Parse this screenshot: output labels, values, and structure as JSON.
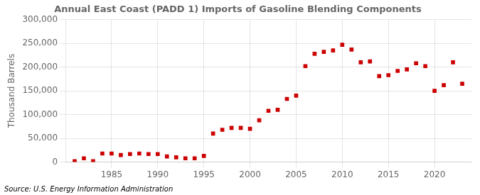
{
  "chart_data": {
    "type": "scatter",
    "title": "Annual East Coast (PADD 1) Imports of Gasoline Blending Components",
    "ylabel": "Thousand Barrels",
    "annotations": [
      "Source: U.S. Energy Information Administration"
    ],
    "x": [
      1981,
      1982,
      1983,
      1984,
      1985,
      1986,
      1987,
      1988,
      1989,
      1990,
      1991,
      1992,
      1993,
      1994,
      1995,
      1996,
      1997,
      1998,
      1999,
      2000,
      2001,
      2002,
      2003,
      2004,
      2005,
      2006,
      2007,
      2008,
      2009,
      2010,
      2011,
      2012,
      2013,
      2014,
      2015,
      2016,
      2017,
      2018,
      2019,
      2020,
      2021,
      2022,
      2023
    ],
    "values": [
      2000,
      8000,
      2000,
      18000,
      18000,
      15000,
      17000,
      18000,
      17000,
      17000,
      12000,
      10000,
      8000,
      8000,
      13000,
      60000,
      68000,
      72000,
      72000,
      70000,
      88000,
      108000,
      110000,
      133000,
      140000,
      202000,
      228000,
      232000,
      235000,
      247000,
      237000,
      210000,
      212000,
      181000,
      183000,
      192000,
      195000,
      208000,
      202000,
      150000,
      162000,
      210000,
      165000
    ],
    "color": "#cc0000",
    "marker": "square",
    "xlim": [
      1980,
      2024
    ],
    "xticks": [
      1985,
      1990,
      1995,
      2000,
      2005,
      2010,
      2015,
      2020
    ],
    "ylim": [
      0,
      300000
    ],
    "yticks": [
      0,
      {
        "value": 50000,
        "label": "50,000"
      },
      {
        "value": 100000,
        "label": "100,000"
      },
      {
        "value": 150000,
        "label": "150,000"
      },
      {
        "value": 200000,
        "label": "200,000"
      },
      {
        "value": 250000,
        "label": "250,000"
      },
      {
        "value": 300000,
        "label": "300,000"
      }
    ],
    "grid": true
  }
}
